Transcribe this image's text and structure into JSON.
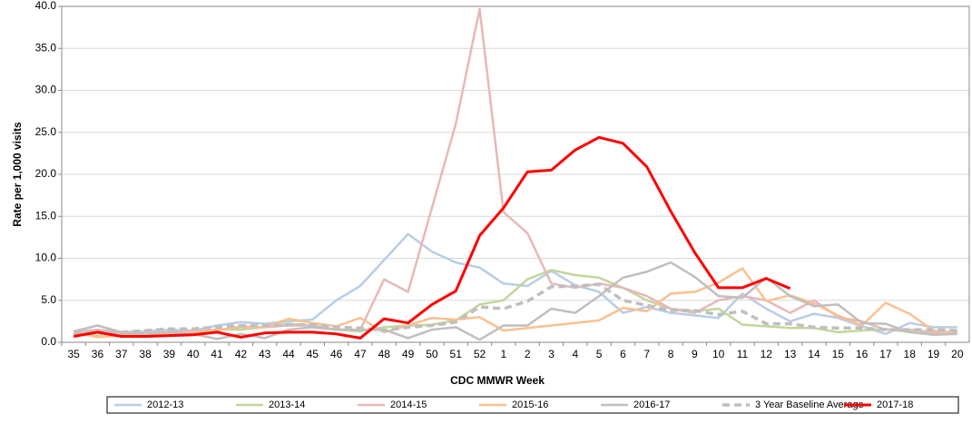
{
  "chart_data": {
    "type": "line",
    "x_label": "CDC MMWR Week",
    "y_label": "Rate per 1,000 visits",
    "categories": [
      "35",
      "36",
      "37",
      "38",
      "39",
      "40",
      "41",
      "42",
      "43",
      "44",
      "45",
      "46",
      "47",
      "48",
      "49",
      "50",
      "51",
      "52",
      "1",
      "2",
      "3",
      "4",
      "5",
      "6",
      "7",
      "8",
      "9",
      "10",
      "11",
      "12",
      "13",
      "14",
      "15",
      "16",
      "17",
      "18",
      "19",
      "20"
    ],
    "ylim": [
      0,
      40
    ],
    "yticks": [
      {
        "value": 0,
        "label": "0.0"
      },
      {
        "value": 5,
        "label": "5.0"
      },
      {
        "value": 10,
        "label": "10.0"
      },
      {
        "value": 15,
        "label": "15.0"
      },
      {
        "value": 20,
        "label": "20.0"
      },
      {
        "value": 25,
        "label": "25.0"
      },
      {
        "value": 30,
        "label": "30.0"
      },
      {
        "value": 35,
        "label": "35.0"
      },
      {
        "value": 40,
        "label": "40.0"
      }
    ],
    "grid": true,
    "legend": "bottom",
    "series": [
      {
        "name": "2012-13",
        "color": "#b9cde5",
        "linewidth": 2.5,
        "dashed": false,
        "values": [
          1.0,
          1.5,
          1.2,
          1.3,
          1.5,
          1.4,
          2.0,
          2.4,
          2.2,
          2.5,
          2.7,
          5.0,
          6.7,
          9.8,
          12.9,
          10.8,
          9.5,
          8.9,
          7.0,
          6.7,
          8.5,
          6.8,
          6.0,
          3.5,
          4.2,
          3.5,
          3.2,
          2.9,
          5.8,
          4.0,
          2.5,
          3.4,
          2.9,
          1.9,
          1.0,
          2.3,
          1.8,
          1.8
        ]
      },
      {
        "name": "2013-14",
        "color": "#c3d69b",
        "linewidth": 2.5,
        "dashed": false,
        "values": [
          1.0,
          0.8,
          1.0,
          1.0,
          1.2,
          1.2,
          1.5,
          1.5,
          1.8,
          2.2,
          2.0,
          1.5,
          1.3,
          1.8,
          2.0,
          2.1,
          2.6,
          4.5,
          5.0,
          7.5,
          8.6,
          8.0,
          7.7,
          6.5,
          5.0,
          4.0,
          3.7,
          4.0,
          2.1,
          1.9,
          1.7,
          1.7,
          1.2,
          1.4,
          1.6,
          1.2,
          1.0,
          1.4
        ]
      },
      {
        "name": "2014-15",
        "color": "#e6b9b8",
        "linewidth": 2.5,
        "dashed": false,
        "values": [
          1.2,
          1.5,
          1.0,
          1.0,
          1.2,
          1.3,
          1.5,
          1.8,
          1.8,
          2.0,
          2.0,
          1.5,
          1.5,
          7.5,
          6.0,
          16.0,
          26.0,
          39.7,
          15.5,
          13.0,
          7.0,
          6.5,
          7.0,
          6.5,
          5.5,
          4.0,
          3.5,
          5.0,
          5.5,
          5.0,
          3.5,
          5.0,
          3.0,
          2.5,
          1.5,
          1.5,
          1.2,
          1.0
        ]
      },
      {
        "name": "2015-16",
        "color": "#fac090",
        "linewidth": 2.5,
        "dashed": false,
        "values": [
          1.2,
          0.6,
          0.8,
          1.0,
          1.0,
          1.2,
          1.4,
          1.9,
          1.8,
          2.8,
          2.3,
          1.9,
          2.9,
          1.2,
          2.0,
          2.9,
          2.7,
          3.0,
          1.4,
          1.7,
          2.0,
          2.3,
          2.6,
          4.1,
          3.7,
          5.8,
          6.0,
          7.1,
          8.8,
          4.9,
          5.6,
          4.6,
          3.2,
          2.0,
          4.7,
          3.4,
          1.4,
          1.1
        ]
      },
      {
        "name": "2016-17",
        "color": "#bfbfbf",
        "linewidth": 2.5,
        "dashed": false,
        "values": [
          1.3,
          2.0,
          1.2,
          1.0,
          1.2,
          1.0,
          0.4,
          1.0,
          0.5,
          1.5,
          1.8,
          1.5,
          1.5,
          1.5,
          0.5,
          1.5,
          1.8,
          0.3,
          2.0,
          2.0,
          4.0,
          3.5,
          5.5,
          7.7,
          8.4,
          9.5,
          7.8,
          5.5,
          5.3,
          7.7,
          5.5,
          4.3,
          4.5,
          2.3,
          2.2,
          1.2,
          0.9,
          1.0
        ]
      },
      {
        "name": "3 Year Baseline Average",
        "color": "#bfbfbf",
        "linewidth": 3.5,
        "dashed": true,
        "values": [
          1.2,
          1.2,
          1.2,
          1.4,
          1.6,
          1.6,
          1.8,
          2.0,
          2.0,
          2.1,
          2.1,
          1.8,
          1.7,
          1.4,
          1.8,
          2.0,
          2.4,
          4.2,
          4.0,
          4.9,
          6.6,
          6.7,
          6.9,
          5.0,
          4.4,
          3.8,
          3.8,
          3.3,
          3.7,
          2.2,
          2.2,
          1.8,
          1.7,
          1.7,
          1.5,
          1.5,
          1.5,
          1.4
        ]
      },
      {
        "name": "2017-18",
        "color": "#ff0000",
        "linewidth": 3,
        "dashed": false,
        "values": [
          0.7,
          1.2,
          0.7,
          0.7,
          0.8,
          0.9,
          1.2,
          0.6,
          1.1,
          1.2,
          1.2,
          1.0,
          0.5,
          2.8,
          2.3,
          4.5,
          6.1,
          12.7,
          16.0,
          20.3,
          20.5,
          22.9,
          24.4,
          23.7,
          20.9,
          15.6,
          10.7,
          6.5,
          6.5,
          7.6,
          6.4,
          null,
          null,
          null,
          null,
          null,
          null,
          null
        ]
      }
    ]
  }
}
